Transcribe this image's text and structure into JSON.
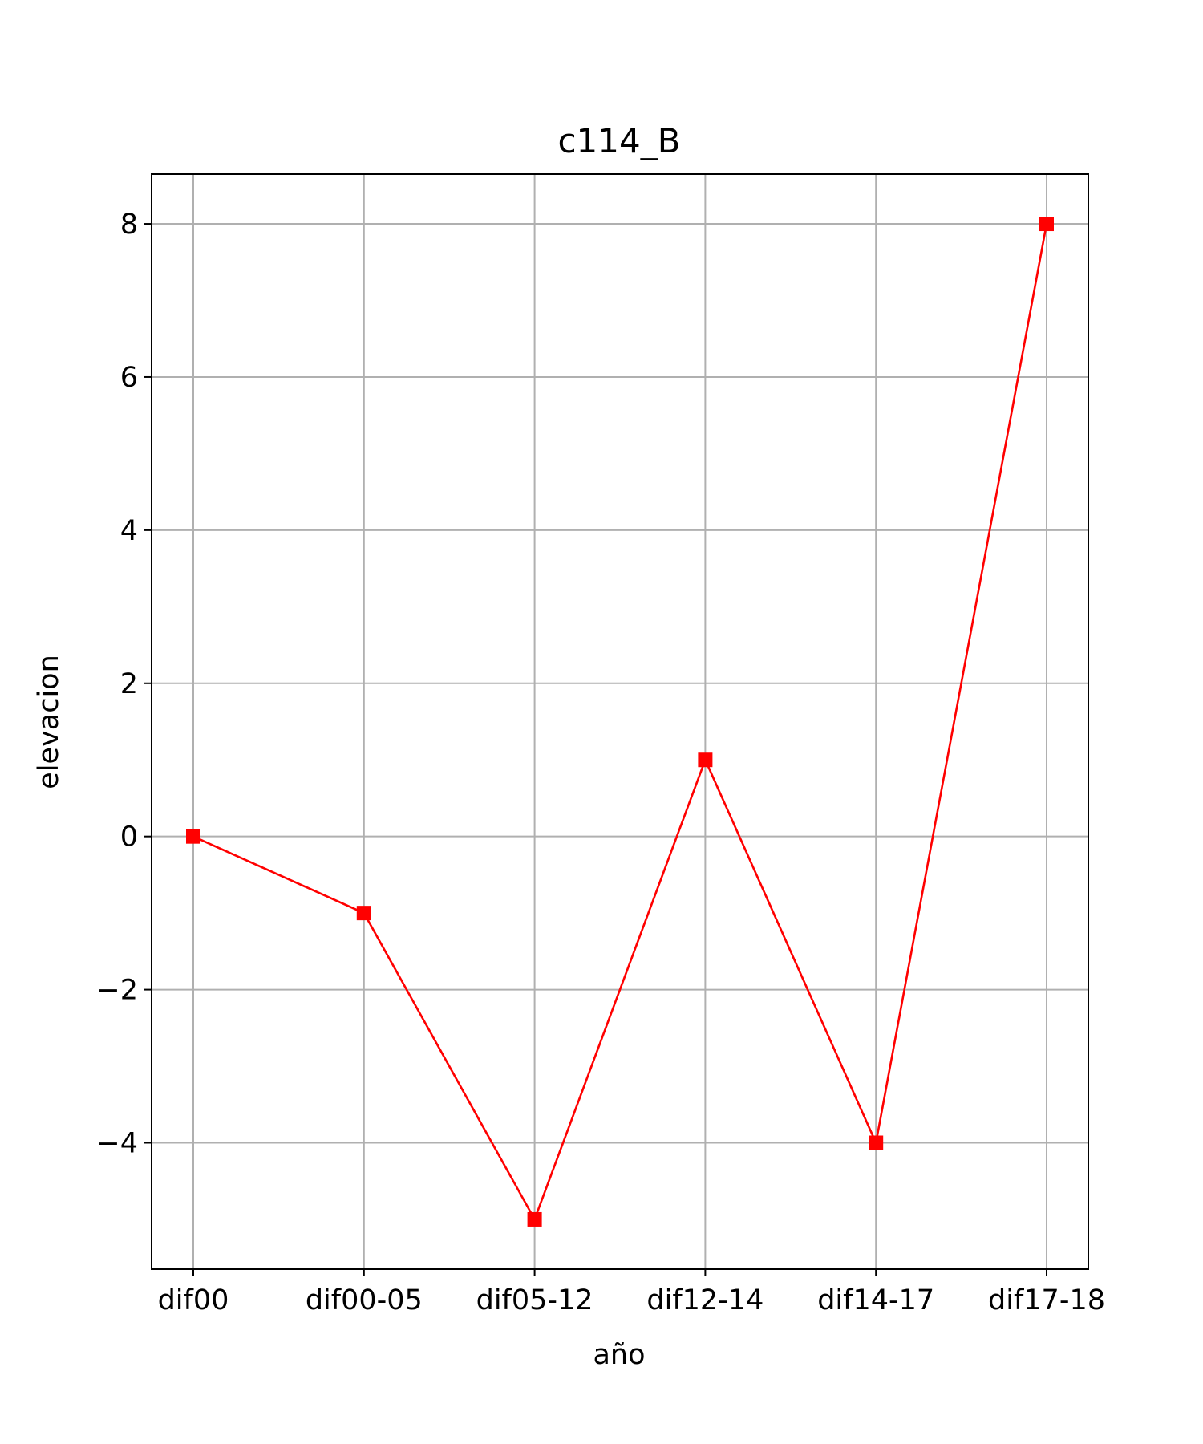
{
  "chart_data": {
    "type": "line",
    "title": "c114_B",
    "xlabel": "año",
    "ylabel": "elevacion",
    "categories": [
      "dif00",
      "dif00-05",
      "dif05-12",
      "dif12-14",
      "dif14-17",
      "dif17-18"
    ],
    "series": [
      {
        "values": [
          0,
          -1,
          -5,
          1,
          -4,
          8
        ],
        "color": "#ff0000",
        "marker": "square"
      }
    ],
    "yticks": [
      -4,
      -2,
      0,
      2,
      4,
      6,
      8
    ],
    "ylim": [
      -5.65,
      8.65
    ],
    "grid": true,
    "legend": "none"
  }
}
